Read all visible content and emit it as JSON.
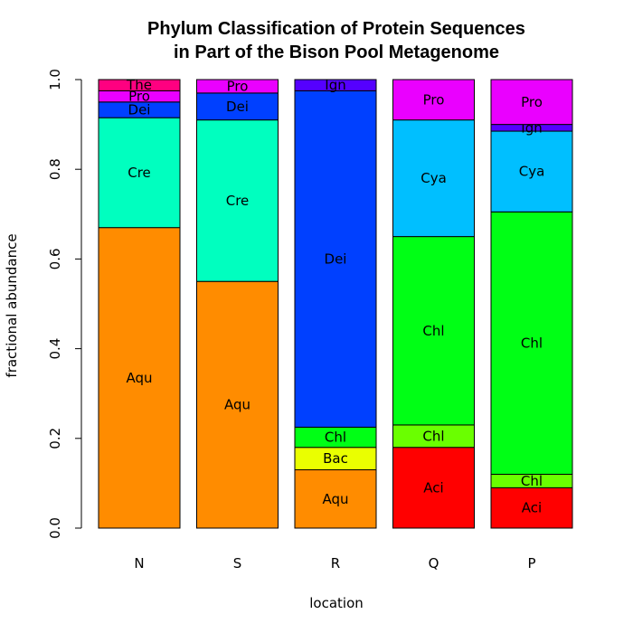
{
  "chart_data": {
    "type": "bar",
    "stacked": true,
    "title": [
      "Phylum Classification of Protein Sequences",
      "in Part of the Bison Pool Metagenome"
    ],
    "xlabel": "location",
    "ylabel": "fractional abundance",
    "ylim": [
      0,
      1
    ],
    "yticks": [
      "0.0",
      "0.2",
      "0.4",
      "0.6",
      "0.8",
      "1.0"
    ],
    "ytick_values": [
      0,
      0.2,
      0.4,
      0.6,
      0.8,
      1.0
    ],
    "grid": false,
    "categories": [
      "N",
      "S",
      "R",
      "Q",
      "P"
    ],
    "bars": [
      {
        "category": "N",
        "segments": [
          {
            "label": "Aqu",
            "value": 0.67,
            "color": "#FF8C00"
          },
          {
            "label": "Cre",
            "value": 0.245,
            "color": "#00FFBF"
          },
          {
            "label": "Dei",
            "value": 0.035,
            "color": "#0040FF"
          },
          {
            "label": "Pro",
            "value": 0.025,
            "color": "#EA00FF"
          },
          {
            "label": "The",
            "value": 0.025,
            "color": "#FF0080"
          }
        ]
      },
      {
        "category": "S",
        "segments": [
          {
            "label": "Aqu",
            "value": 0.55,
            "color": "#FF8C00"
          },
          {
            "label": "Cre",
            "value": 0.36,
            "color": "#00FFBF"
          },
          {
            "label": "Dei",
            "value": 0.06,
            "color": "#0040FF"
          },
          {
            "label": "Pro",
            "value": 0.03,
            "color": "#EA00FF"
          }
        ]
      },
      {
        "category": "R",
        "segments": [
          {
            "label": "Aqu",
            "value": 0.13,
            "color": "#FF8C00"
          },
          {
            "label": "Bac",
            "value": 0.05,
            "color": "#EAFF00"
          },
          {
            "label": "Chl",
            "value": 0.045,
            "color": "#00FF15"
          },
          {
            "label": "Dei",
            "value": 0.75,
            "color": "#0040FF"
          },
          {
            "label": "Ign",
            "value": 0.025,
            "color": "#5500FF"
          }
        ]
      },
      {
        "category": "Q",
        "segments": [
          {
            "label": "Aci",
            "value": 0.18,
            "color": "#FF0000"
          },
          {
            "label": "Chl",
            "value": 0.05,
            "color": "#6AFF00"
          },
          {
            "label": "Chl",
            "value": 0.42,
            "color": "#00FF15"
          },
          {
            "label": "Cya",
            "value": 0.26,
            "color": "#00BFFF"
          },
          {
            "label": "Pro",
            "value": 0.09,
            "color": "#EA00FF"
          }
        ]
      },
      {
        "category": "P",
        "segments": [
          {
            "label": "Aci",
            "value": 0.09,
            "color": "#FF0000"
          },
          {
            "label": "Chl",
            "value": 0.03,
            "color": "#6AFF00"
          },
          {
            "label": "Chl",
            "value": 0.585,
            "color": "#00FF15"
          },
          {
            "label": "Cya",
            "value": 0.18,
            "color": "#00BFFF"
          },
          {
            "label": "Ign",
            "value": 0.015,
            "color": "#5500FF"
          },
          {
            "label": "Pro",
            "value": 0.1,
            "color": "#EA00FF"
          }
        ]
      }
    ]
  }
}
